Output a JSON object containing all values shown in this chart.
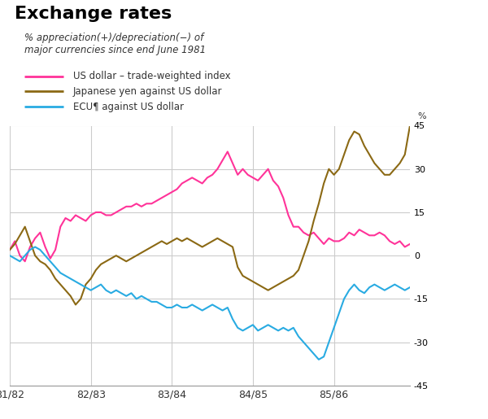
{
  "title": "Exchange rates",
  "subtitle": "% appreciation(+)/depreciation(−) of\nmajor currencies since end June 1981",
  "ylabel_right": "%",
  "legend": [
    {
      "label": "US dollar – trade-weighted index",
      "color": "#FF3399"
    },
    {
      "label": "Japanese yen against US dollar",
      "color": "#8B6914"
    },
    {
      "label": "ECU¶ against US dollar",
      "color": "#29ABE2"
    }
  ],
  "x_tick_labels": [
    "81/82",
    "82/83",
    "83/84",
    "84/85",
    "85/86"
  ],
  "ylim": [
    -45,
    45
  ],
  "yticks": [
    -45,
    -30,
    -15,
    0,
    15,
    30,
    45
  ],
  "background_color": "#FFFFFF",
  "grid_color": "#CCCCCC",
  "us_dollar": [
    2,
    5,
    0,
    -2,
    3,
    6,
    8,
    3,
    -1,
    2,
    10,
    13,
    12,
    14,
    13,
    12,
    14,
    15,
    15,
    14,
    14,
    15,
    16,
    17,
    17,
    18,
    17,
    18,
    18,
    19,
    20,
    21,
    22,
    23,
    25,
    26,
    27,
    26,
    25,
    27,
    28,
    30,
    33,
    36,
    32,
    28,
    30,
    28,
    27,
    26,
    28,
    30,
    26,
    24,
    20,
    14,
    10,
    10,
    8,
    7,
    8,
    6,
    4,
    6,
    5,
    5,
    6,
    8,
    7,
    9,
    8,
    7,
    7,
    8,
    7,
    5,
    4,
    5,
    3,
    4
  ],
  "yen": [
    2,
    4,
    7,
    10,
    5,
    0,
    -2,
    -3,
    -5,
    -8,
    -10,
    -12,
    -14,
    -17,
    -15,
    -10,
    -8,
    -5,
    -3,
    -2,
    -1,
    0,
    -1,
    -2,
    -1,
    0,
    1,
    2,
    3,
    4,
    5,
    4,
    5,
    6,
    5,
    6,
    5,
    4,
    3,
    4,
    5,
    6,
    5,
    4,
    3,
    -4,
    -7,
    -8,
    -9,
    -10,
    -11,
    -12,
    -11,
    -10,
    -9,
    -8,
    -7,
    -5,
    0,
    5,
    12,
    18,
    25,
    30,
    28,
    30,
    35,
    40,
    43,
    42,
    38,
    35,
    32,
    30,
    28,
    28,
    30,
    32,
    35,
    45
  ],
  "ecu": [
    0,
    -1,
    -2,
    0,
    2,
    3,
    2,
    0,
    -2,
    -4,
    -6,
    -7,
    -8,
    -9,
    -10,
    -11,
    -12,
    -11,
    -10,
    -12,
    -13,
    -12,
    -13,
    -14,
    -13,
    -15,
    -14,
    -15,
    -16,
    -16,
    -17,
    -18,
    -18,
    -17,
    -18,
    -18,
    -17,
    -18,
    -19,
    -18,
    -17,
    -18,
    -19,
    -18,
    -22,
    -25,
    -26,
    -25,
    -24,
    -26,
    -25,
    -24,
    -25,
    -26,
    -25,
    -26,
    -25,
    -28,
    -30,
    -32,
    -34,
    -36,
    -35,
    -30,
    -25,
    -20,
    -15,
    -12,
    -10,
    -12,
    -13,
    -11,
    -10,
    -11,
    -12,
    -11,
    -10,
    -11,
    -12,
    -11
  ]
}
